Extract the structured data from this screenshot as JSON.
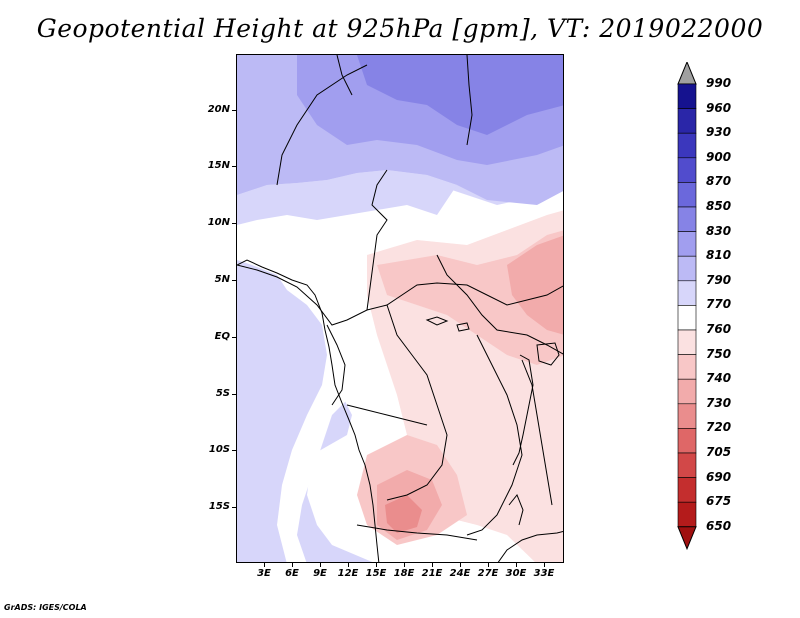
{
  "title": "Geopotential Height at 925hPa [gpm], VT: 2019022000",
  "footer": "GrADS: IGES/COLA",
  "y_axis_labels": [
    "20N",
    "15N",
    "10N",
    "5N",
    "EQ",
    "5S",
    "10S",
    "15S"
  ],
  "x_axis_labels": [
    "3E",
    "6E",
    "9E",
    "12E",
    "15E",
    "18E",
    "21E",
    "24E",
    "27E",
    "30E",
    "33E"
  ],
  "colorbar": {
    "labels": [
      "990",
      "960",
      "930",
      "900",
      "870",
      "850",
      "830",
      "810",
      "790",
      "770",
      "760",
      "750",
      "740",
      "730",
      "720",
      "705",
      "690",
      "675",
      "650"
    ],
    "colors": [
      "#a0a0a0",
      "#15128f",
      "#2a26a8",
      "#3b37bd",
      "#514ccd",
      "#6b68dc",
      "#8683e6",
      "#a19eef",
      "#bcbaf5",
      "#d7d6fa",
      "#ffffff",
      "#fbe1e1",
      "#f8c7c7",
      "#f2abab",
      "#ea8d8d",
      "#df6767",
      "#d24848",
      "#c42e2e",
      "#b41b1b",
      "#a01010"
    ]
  },
  "map_colors": {
    "ocean": "#d7d6fa",
    "land_low": "#ffffff",
    "pink1": "#fbe1e1",
    "pink2": "#f8c7c7",
    "pink3": "#f2abab",
    "pink4": "#ea8d8d",
    "pink5": "#df6767",
    "lav1": "#d7d6fa",
    "lav2": "#bcbaf5",
    "lav3": "#a19eef",
    "lav4": "#8683e6"
  }
}
